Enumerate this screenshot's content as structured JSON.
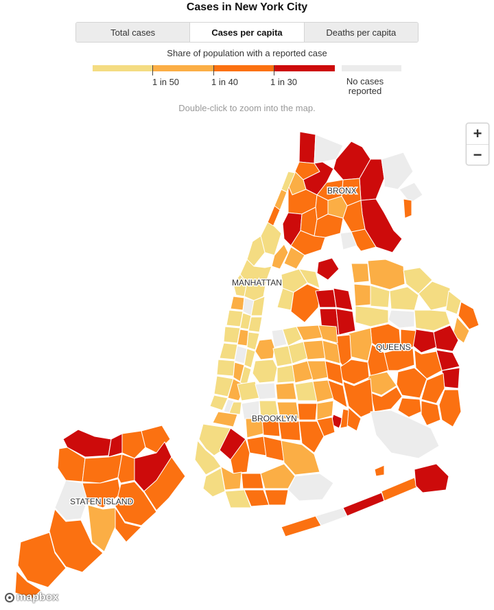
{
  "title": "Cases in New York City",
  "tabs": [
    {
      "label": "Total cases",
      "active": false
    },
    {
      "label": "Cases per capita",
      "active": true
    },
    {
      "label": "Deaths per capita",
      "active": false
    }
  ],
  "legend": {
    "title": "Share of population with a reported case",
    "bins": [
      "#f4dc82",
      "#fbae45",
      "#fb7111",
      "#cd0b0b"
    ],
    "ticks": [
      "1 in 50",
      "1 in 40",
      "1 in 30"
    ],
    "no_data_label": "No cases reported",
    "no_data_color": "#ececec"
  },
  "hint": "Double-click to zoom into the map.",
  "zoom": {
    "in_label": "+",
    "out_label": "−"
  },
  "boroughs": {
    "bronx": "BRONX",
    "manhattan": "MANHATTAN",
    "queens": "QUEENS",
    "brooklyn": "BROOKLYN",
    "staten_island": "STATEN ISLAND"
  },
  "attribution": "mapbox",
  "colors": {
    "bin1": "#f4dc82",
    "bin2": "#fbae45",
    "bin3": "#fb7111",
    "bin4": "#cd0b0b",
    "none": "#ececec"
  }
}
